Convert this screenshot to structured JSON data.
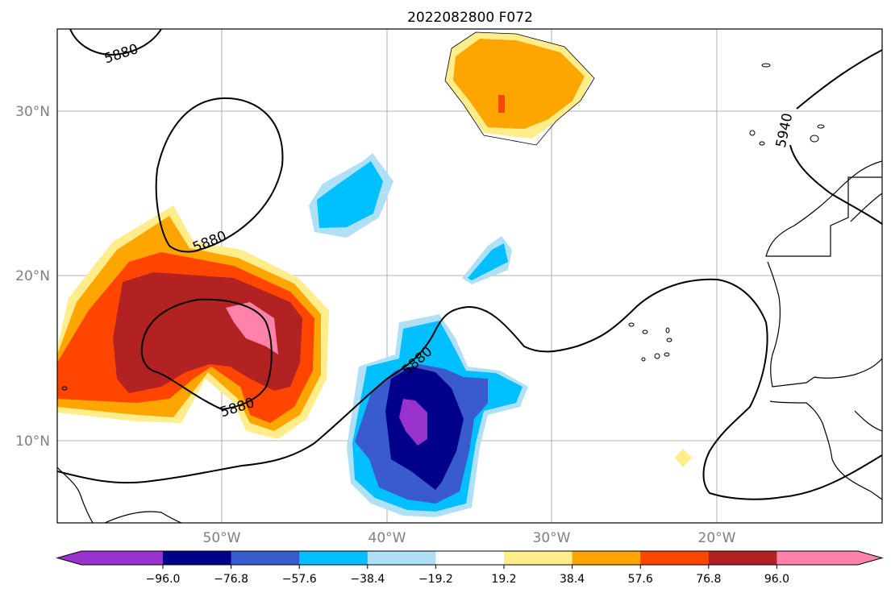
{
  "title": "2022082800 F072",
  "map": {
    "lon_range": [
      -60,
      -10
    ],
    "lat_range": [
      5,
      35
    ],
    "gridlines": true,
    "lat_ticks": [
      {
        "value": 30,
        "label": "30°N"
      },
      {
        "value": 20,
        "label": "20°N"
      },
      {
        "value": 10,
        "label": "10°N"
      }
    ],
    "lon_ticks": [
      {
        "value": -50,
        "label": "50°W"
      },
      {
        "value": -40,
        "label": "40°W"
      },
      {
        "value": -30,
        "label": "30°W"
      },
      {
        "value": -20,
        "label": "20°W"
      }
    ]
  },
  "contours": {
    "color": "#000000",
    "labels": [
      "5880",
      "5880",
      "5880",
      "5880",
      "5940"
    ]
  },
  "colorbar": {
    "colors": [
      "#9932cc",
      "#00008b",
      "#3a5bcd",
      "#00bfff",
      "#b0e0f6",
      "#ffffff",
      "#ffec8b",
      "#ffa500",
      "#ff4500",
      "#b22222",
      "#ff82ab"
    ],
    "tick_labels": [
      "−96.0",
      "−76.8",
      "−57.6",
      "−38.4",
      "−19.2",
      "19.2",
      "38.4",
      "57.6",
      "76.8",
      "96.0"
    ],
    "extend": "both"
  }
}
